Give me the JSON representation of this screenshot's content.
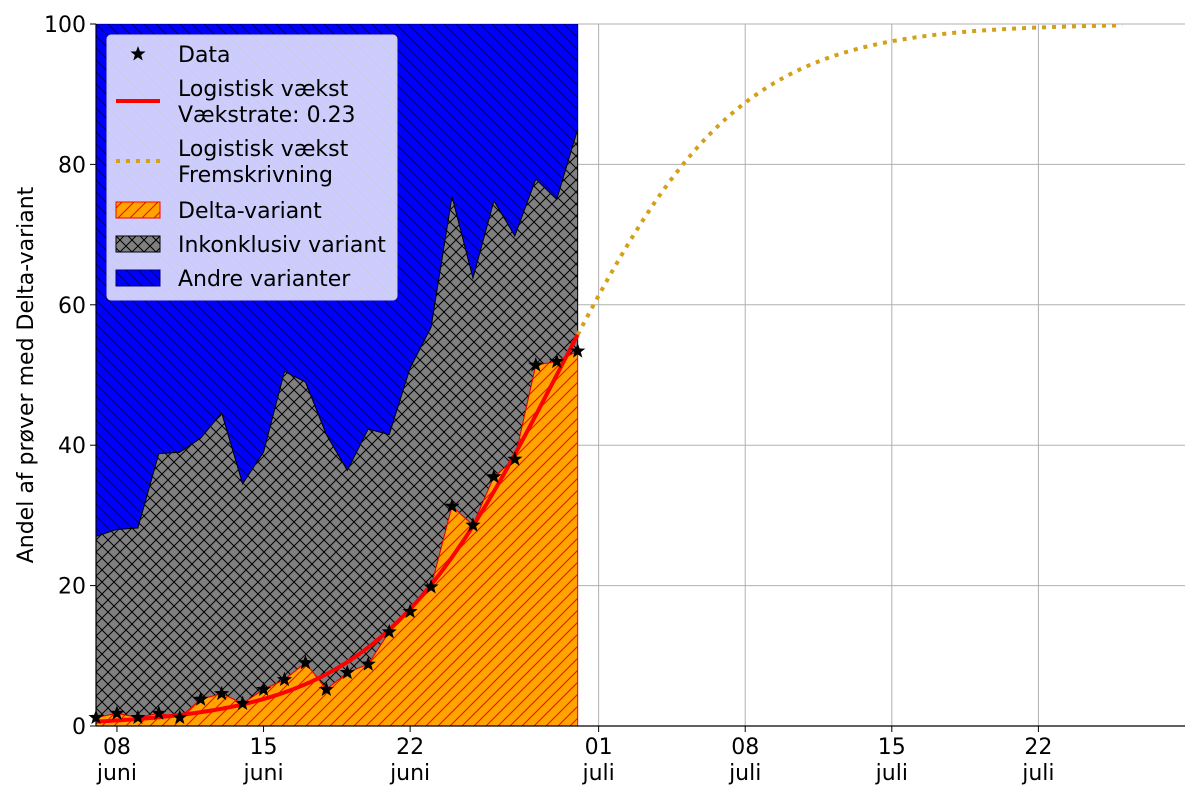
{
  "chart_data": {
    "type": "area",
    "ylabel": "Andel af prøver med Delta-variant",
    "ylim": [
      0,
      100
    ],
    "xlim": [
      "2021-06-07",
      "2021-07-29"
    ],
    "grid": true,
    "legend_placement": "top-left",
    "yticks": [
      0,
      20,
      40,
      60,
      80,
      100
    ],
    "yticklabels": [
      "0",
      "20",
      "40",
      "60",
      "80",
      "100"
    ],
    "xticks": [
      {
        "date": "2021-06-08",
        "day": "08",
        "month": "juni"
      },
      {
        "date": "2021-06-15",
        "day": "15",
        "month": "juni"
      },
      {
        "date": "2021-06-22",
        "day": "22",
        "month": "juni"
      },
      {
        "date": "2021-07-01",
        "day": "01",
        "month": "juli"
      },
      {
        "date": "2021-07-08",
        "day": "08",
        "month": "juli"
      },
      {
        "date": "2021-07-15",
        "day": "15",
        "month": "juli"
      },
      {
        "date": "2021-07-22",
        "day": "22",
        "month": "juli"
      }
    ],
    "dates": [
      "2021-06-07",
      "2021-06-08",
      "2021-06-09",
      "2021-06-10",
      "2021-06-11",
      "2021-06-12",
      "2021-06-13",
      "2021-06-14",
      "2021-06-15",
      "2021-06-16",
      "2021-06-17",
      "2021-06-18",
      "2021-06-19",
      "2021-06-20",
      "2021-06-21",
      "2021-06-22",
      "2021-06-23",
      "2021-06-24",
      "2021-06-25",
      "2021-06-26",
      "2021-06-27",
      "2021-06-28",
      "2021-06-29",
      "2021-06-30"
    ],
    "series": [
      {
        "name": "Delta-variant",
        "kind": "stacked-area",
        "color": "#ffa500",
        "edge": "#ff0000",
        "hatch": "diagonal",
        "values": [
          1.2,
          1.8,
          1.2,
          1.8,
          1.2,
          3.8,
          4.6,
          3.2,
          5.2,
          6.6,
          9.0,
          5.2,
          7.6,
          8.8,
          13.4,
          16.3,
          19.8,
          31.3,
          28.6,
          35.5,
          38.0,
          51.4,
          51.9,
          53.4
        ]
      },
      {
        "name": "Inkonklusiv variant",
        "kind": "stacked-area",
        "color": "#808080",
        "edge": "#000000",
        "hatch": "cross",
        "upper_values": [
          27.0,
          28.0,
          28.2,
          38.8,
          39.0,
          41.0,
          44.6,
          34.5,
          39.0,
          50.5,
          49.0,
          41.5,
          36.4,
          42.3,
          41.5,
          51.0,
          56.8,
          75.4,
          63.8,
          74.8,
          69.8,
          77.9,
          75.0,
          85.0
        ]
      },
      {
        "name": "Andre varianter",
        "kind": "stacked-area",
        "color": "#0000ff",
        "edge": "#000080",
        "hatch": "diagonal-back",
        "upper": 100
      },
      {
        "name": "Data",
        "kind": "scatter",
        "marker": "star",
        "color": "#000000",
        "values": [
          1.2,
          1.8,
          1.2,
          1.8,
          1.2,
          3.8,
          4.6,
          3.2,
          5.2,
          6.6,
          9.0,
          5.2,
          7.6,
          8.8,
          13.4,
          16.3,
          19.8,
          31.3,
          28.6,
          35.5,
          38.0,
          51.4,
          51.9,
          53.4
        ]
      },
      {
        "name": "Logistisk vækst\nVækstrate: 0.23",
        "kind": "logistic-fit",
        "color": "#ff0000",
        "line": "solid",
        "rate": 0.23,
        "midpoint_date": "2021-06-29",
        "start_date": "2021-06-07",
        "end_date": "2021-06-30"
      },
      {
        "name": "Logistisk vækst\nFremskrivning",
        "kind": "logistic-projection",
        "color": "#d4a017",
        "line": "dotted",
        "rate": 0.23,
        "midpoint_date": "2021-06-29",
        "start_date": "2021-06-30",
        "end_date": "2021-07-26"
      }
    ],
    "legend": [
      {
        "label": "Data",
        "type": "star"
      },
      {
        "label": "Logistisk vækst",
        "label2": "Vækstrate: 0.23",
        "type": "line",
        "color": "#ff0000"
      },
      {
        "label": "Logistisk vækst",
        "label2": "Fremskrivning",
        "type": "dotted",
        "color": "#d4a017"
      },
      {
        "label": "Delta-variant",
        "type": "patch",
        "color": "#ffa500",
        "edge": "#ff0000",
        "hatch": "diagonal"
      },
      {
        "label": "Inkonklusiv variant",
        "type": "patch",
        "color": "#808080",
        "edge": "#000000",
        "hatch": "cross"
      },
      {
        "label": "Andre varianter",
        "type": "patch",
        "color": "#0000ff",
        "edge": "#000080",
        "hatch": "diagonal-back"
      }
    ]
  }
}
